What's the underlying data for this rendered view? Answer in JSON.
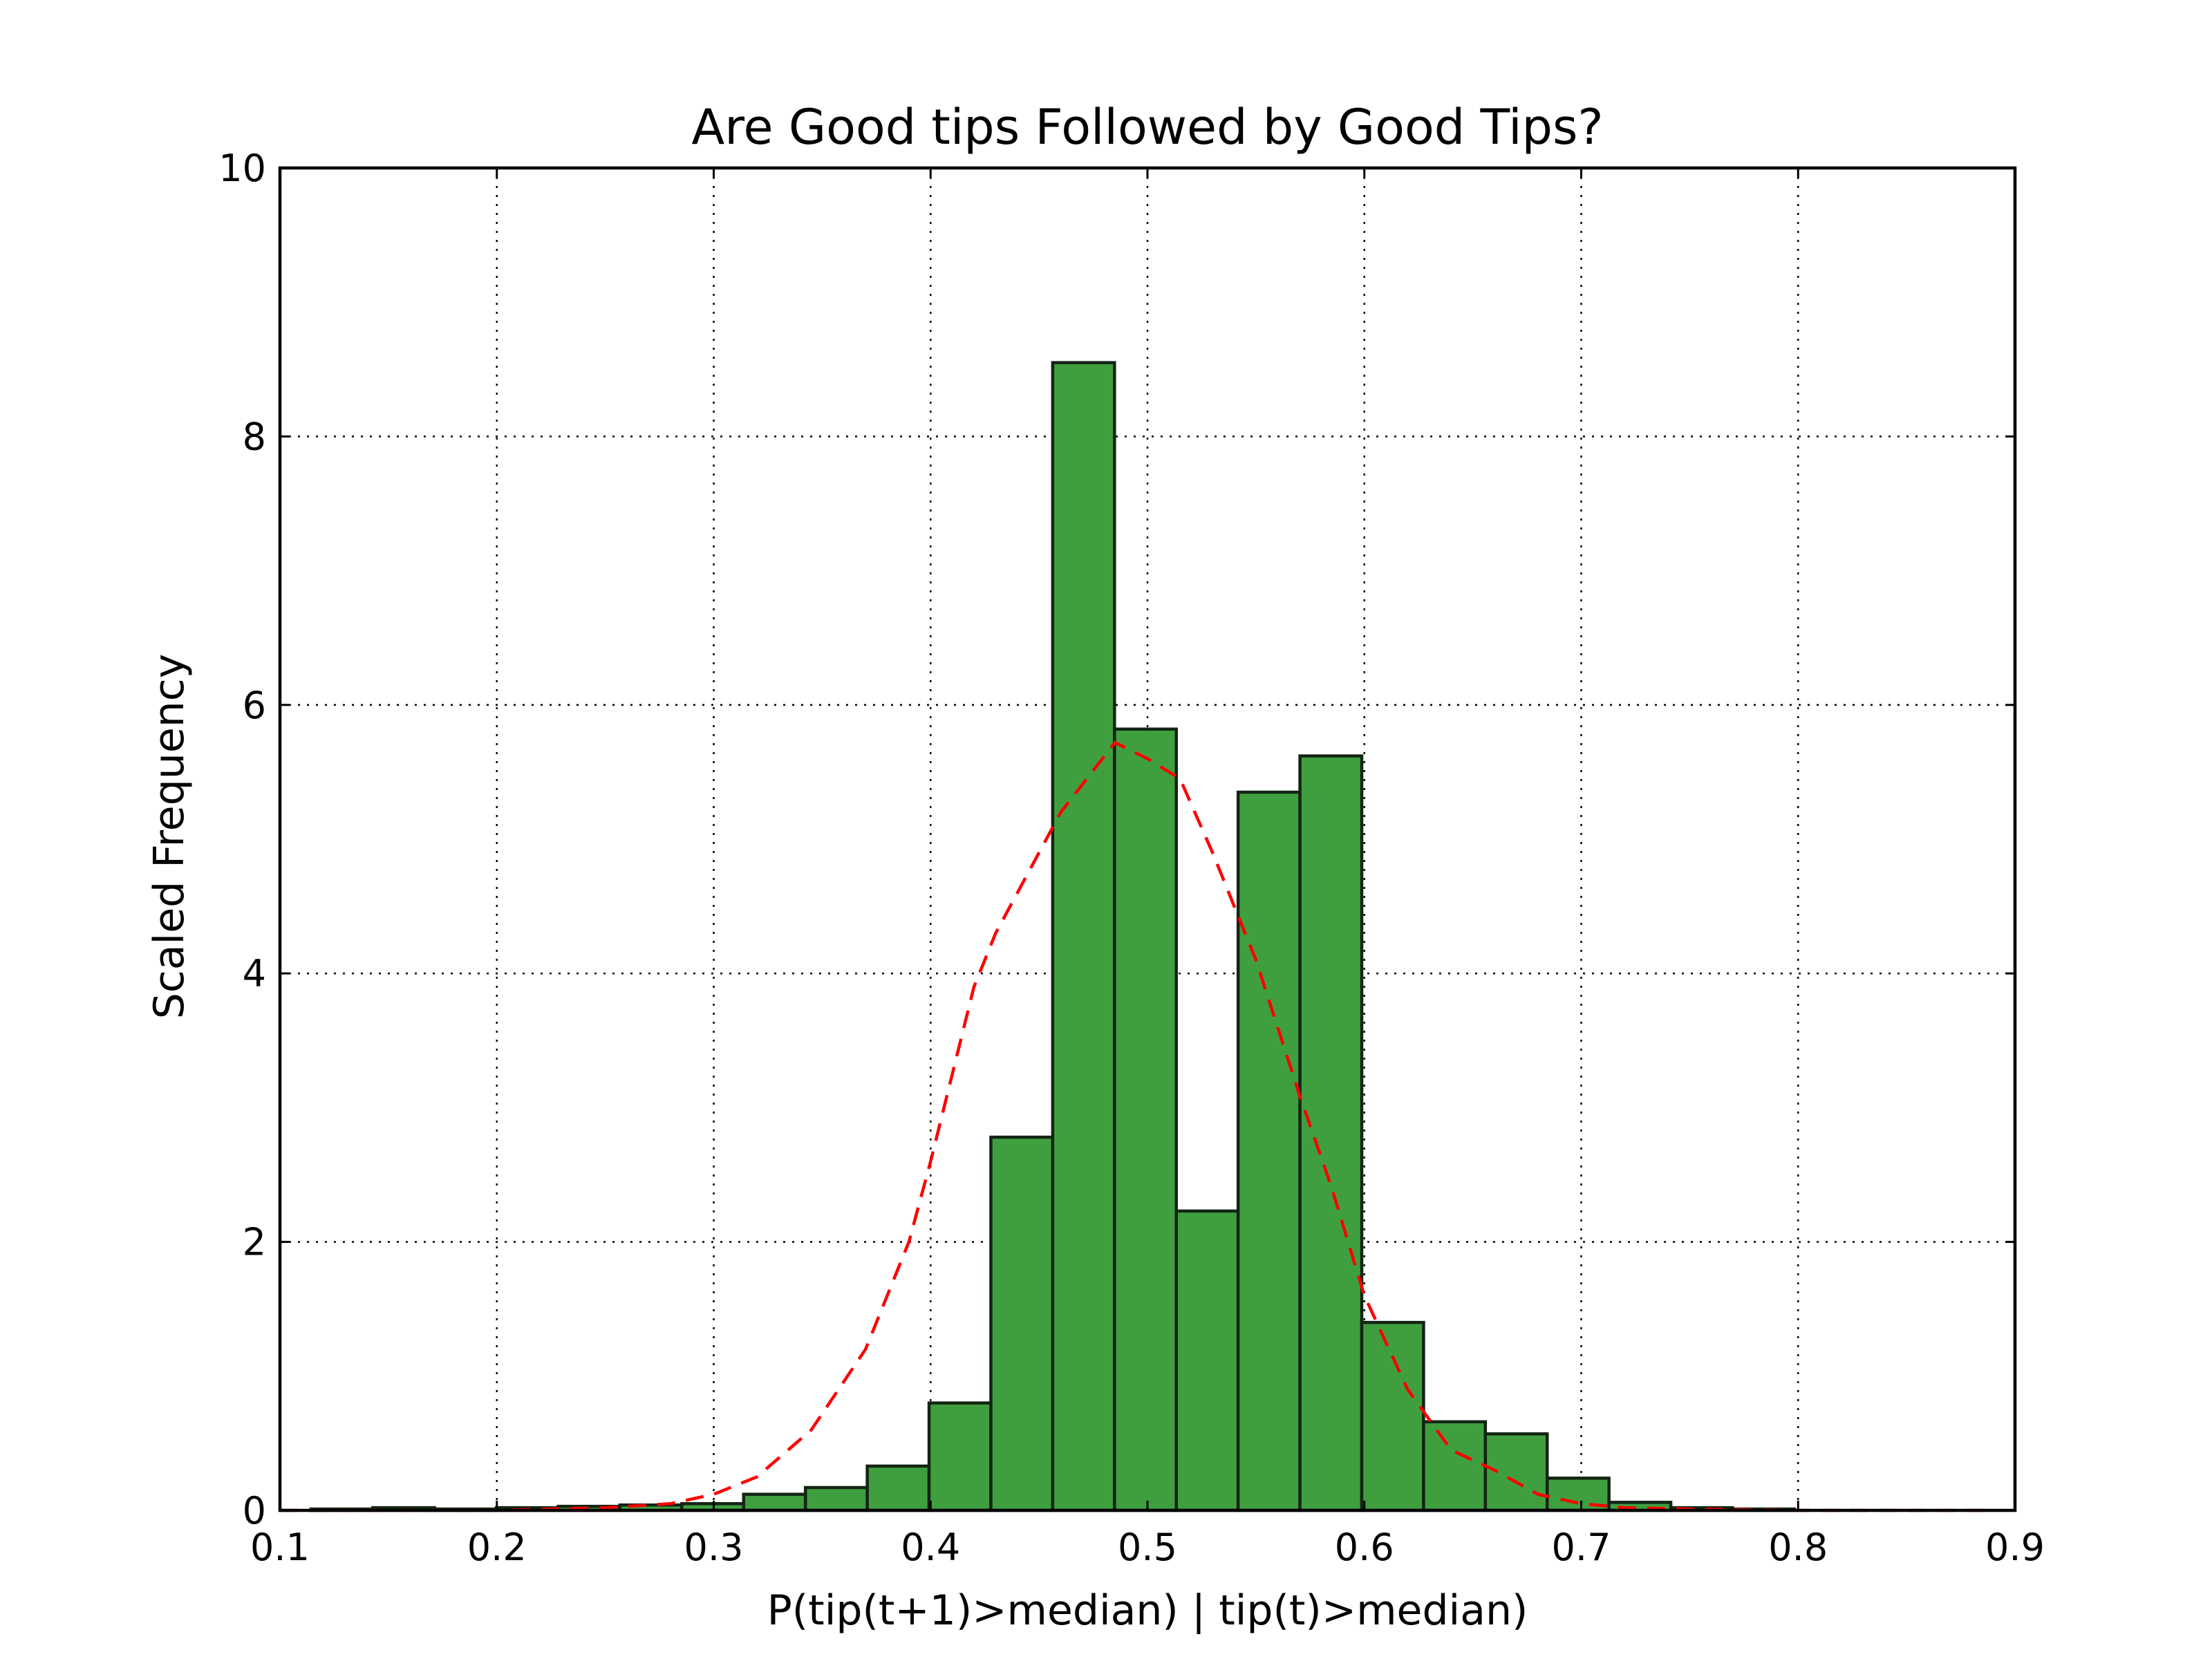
{
  "chart_data": {
    "type": "bar",
    "title": "Are Good tips Followed by Good Tips?",
    "xlabel": "P(tip(t+1)>median) | tip(t)>median)",
    "ylabel": "Scaled Frequency",
    "xlim": [
      0.1,
      0.9
    ],
    "ylim": [
      0,
      10
    ],
    "grid": true,
    "xticks": [
      "0.1",
      "0.2",
      "0.3",
      "0.4",
      "0.5",
      "0.6",
      "0.7",
      "0.8",
      "0.9"
    ],
    "yticks": [
      "0",
      "2",
      "4",
      "6",
      "8",
      "10"
    ],
    "bar_color": "#3f9f3f",
    "bin_start": 0.1143,
    "bin_width": 0.0285,
    "values": [
      0.01,
      0.02,
      0.01,
      0.02,
      0.03,
      0.04,
      0.05,
      0.12,
      0.17,
      0.33,
      0.8,
      2.78,
      8.55,
      5.82,
      2.23,
      5.35,
      5.62,
      1.4,
      0.66,
      0.57,
      0.24,
      0.06,
      0.02,
      0.01,
      0.0,
      0.0,
      0.0
    ],
    "fit_curve": {
      "color": "#ff0000",
      "style": "dashed",
      "x": [
        0.1,
        0.15,
        0.2,
        0.25,
        0.28,
        0.3,
        0.32,
        0.345,
        0.37,
        0.39,
        0.4,
        0.42,
        0.43,
        0.46,
        0.485,
        0.5,
        0.515,
        0.53,
        0.55,
        0.57,
        0.585,
        0.6,
        0.62,
        0.64,
        0.66,
        0.68,
        0.7,
        0.72,
        0.75,
        0.8,
        0.85,
        0.89
      ],
      "y": [
        0.0,
        0.0,
        0.0,
        0.02,
        0.05,
        0.12,
        0.25,
        0.6,
        1.2,
        2.0,
        2.6,
        3.9,
        4.3,
        5.2,
        5.72,
        5.6,
        5.45,
        4.9,
        4.1,
        3.1,
        2.4,
        1.6,
        0.9,
        0.45,
        0.3,
        0.12,
        0.05,
        0.02,
        0.01,
        0.0,
        0.0,
        0.0
      ]
    }
  }
}
